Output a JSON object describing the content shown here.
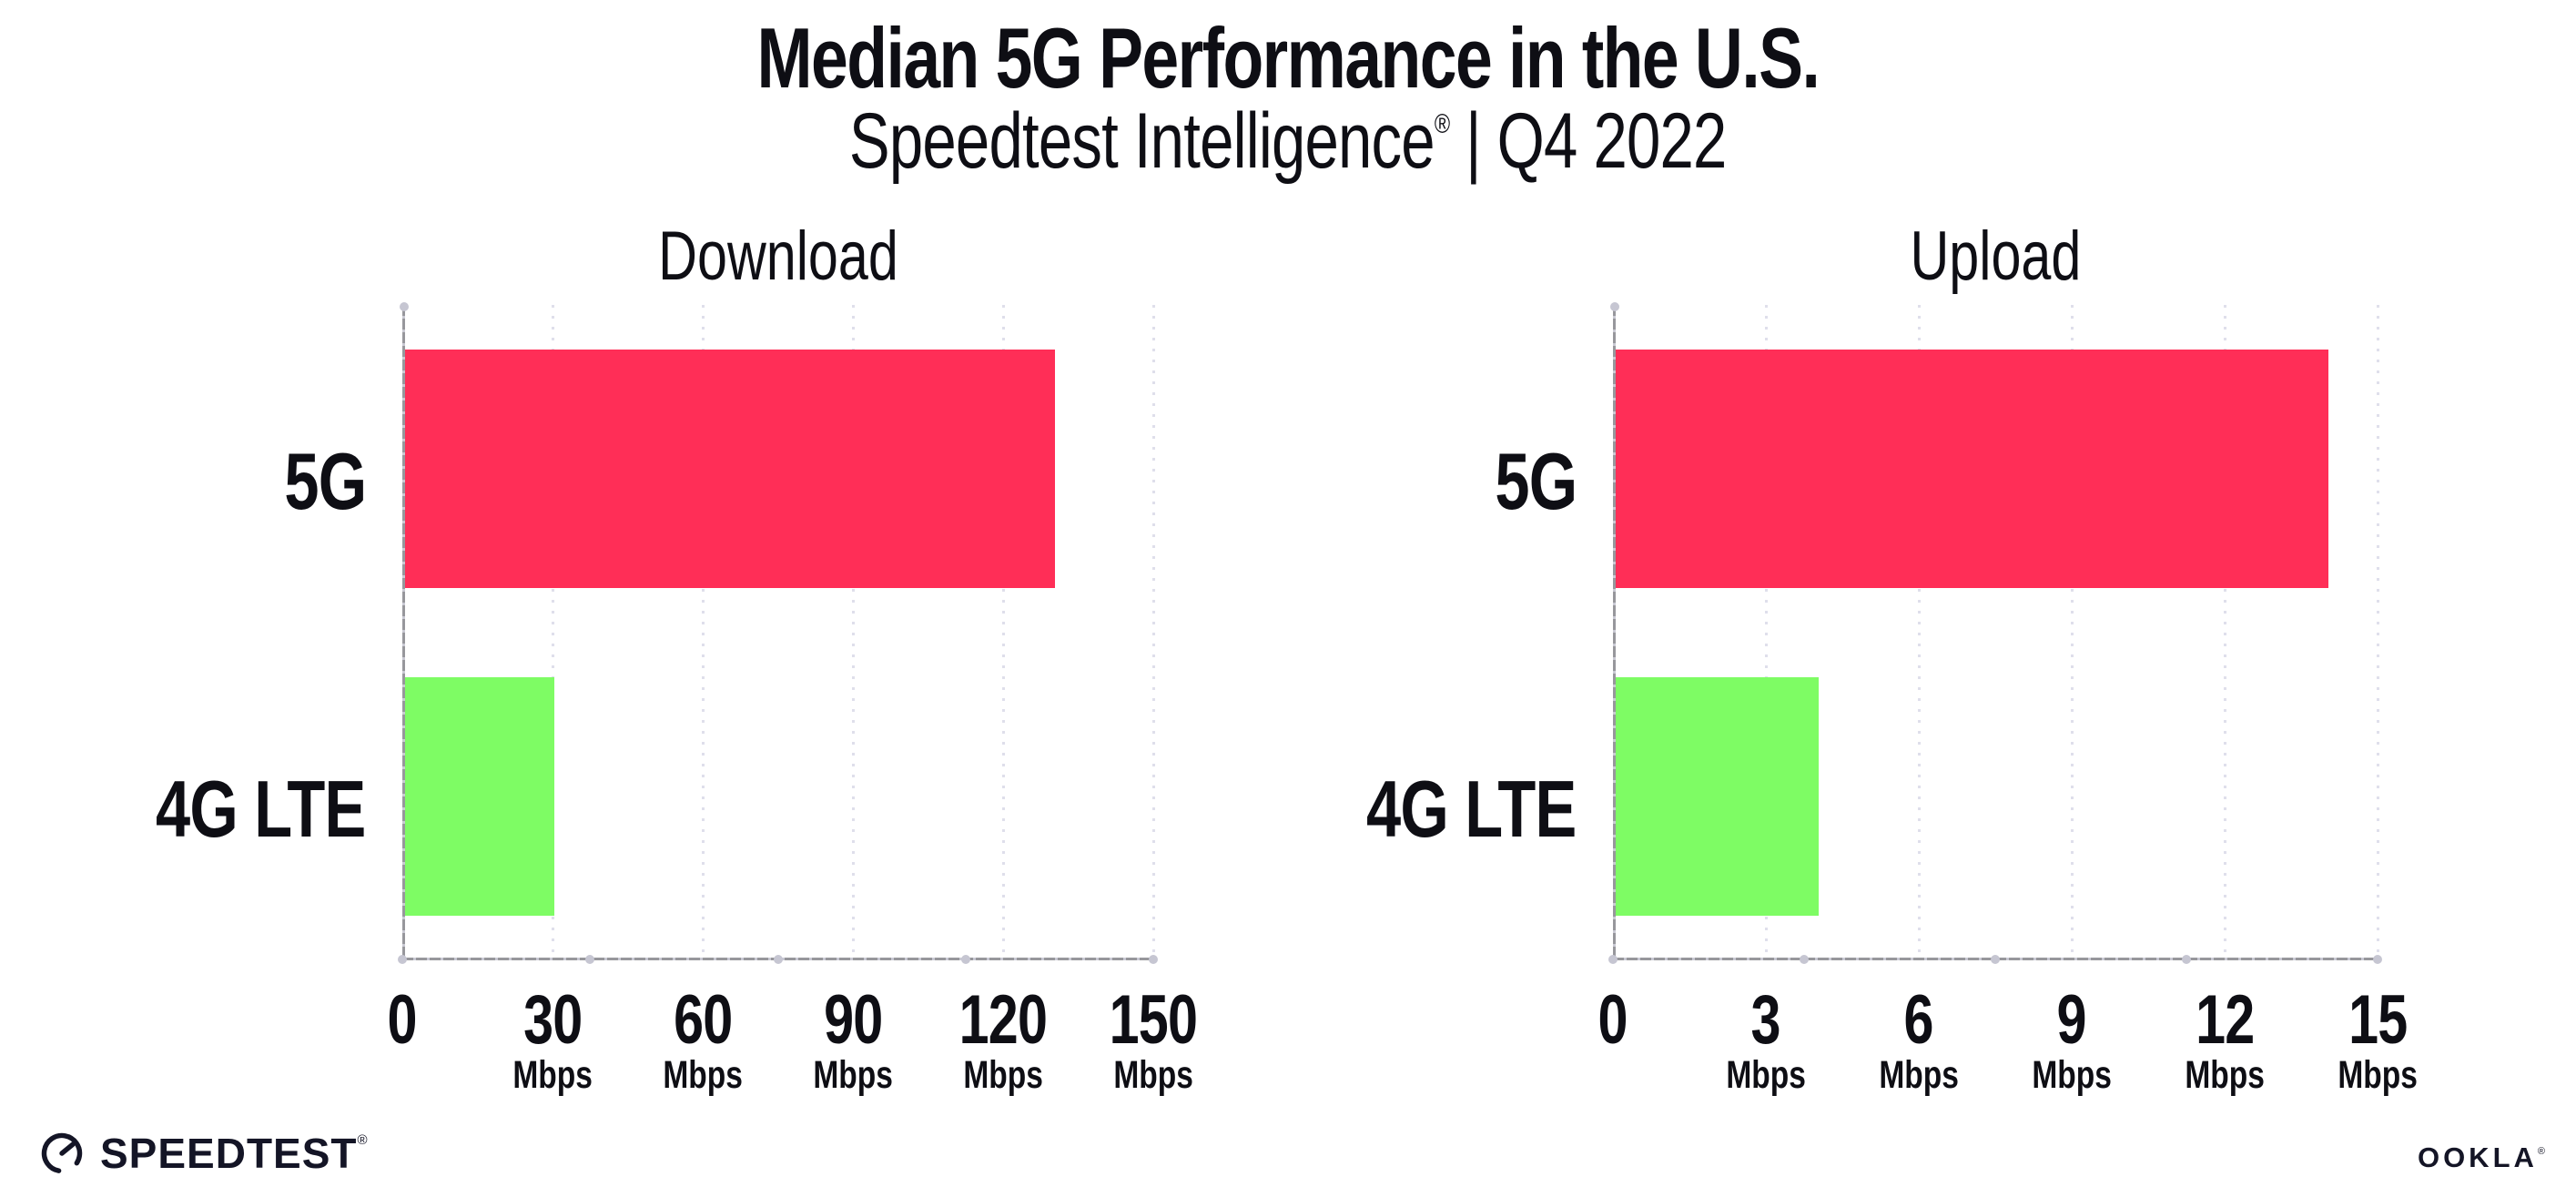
{
  "page": {
    "background": "#ffffff",
    "text_color": "#0e0e14"
  },
  "header": {
    "title": "Median 5G Performance in the U.S.",
    "subtitle_brand": "Speedtest Intelligence",
    "subtitle_reg": "®",
    "subtitle_rest": " | Q4 2022"
  },
  "footer": {
    "speedtest_logo_text": "SPEEDTEST",
    "speedtest_reg": "®",
    "speedtest_icon": "gauge-icon",
    "ookla_logo_text": "OOKLA",
    "ookla_reg": "®",
    "logo_color": "#141526"
  },
  "chart_data": {
    "type": "bar",
    "orientation": "horizontal",
    "title": "Median 5G Performance in the U.S.",
    "subtitle": "Speedtest Intelligence® | Q4 2022",
    "categories": [
      "5G",
      "4G LTE"
    ],
    "series_colors": {
      "5G": "#ff2e57",
      "4G LTE": "#7efc64"
    },
    "grid": "dotted-vertical",
    "legend": "none",
    "axis_color": "#97979c",
    "gridline_color": "#dfdfeb",
    "panels": [
      {
        "title": "Download",
        "xlim": [
          0,
          150
        ],
        "ticks": [
          0,
          30,
          60,
          90,
          120,
          150
        ],
        "tick_unit": "Mbps",
        "values": {
          "5G": 130,
          "4G LTE": 30
        }
      },
      {
        "title": "Upload",
        "xlim": [
          0,
          15
        ],
        "ticks": [
          0,
          3,
          6,
          9,
          12,
          15
        ],
        "tick_unit": "Mbps",
        "values": {
          "5G": 14,
          "4G LTE": 4
        }
      }
    ]
  }
}
